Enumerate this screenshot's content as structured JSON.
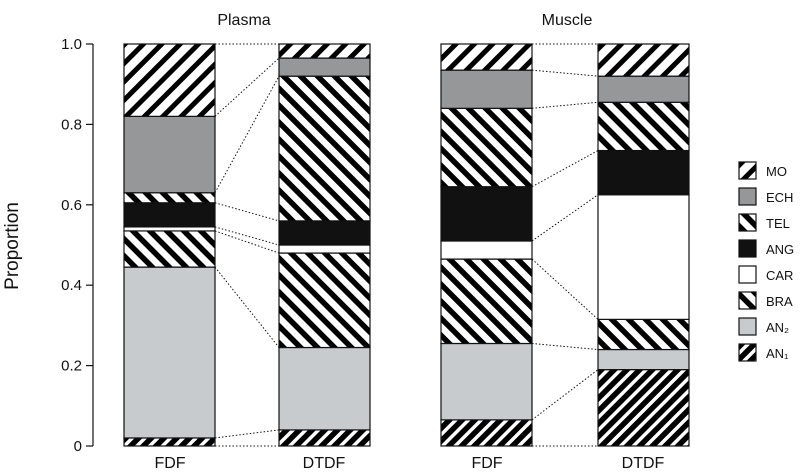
{
  "chart_data": {
    "type": "bar",
    "stacked": true,
    "ylabel": "Proportion",
    "ylim": [
      0,
      1
    ],
    "yticks": [
      {
        "value": 0,
        "label": "0"
      },
      {
        "value": 0.2,
        "label": "0.2"
      },
      {
        "value": 0.4,
        "label": "0.4"
      },
      {
        "value": 0.6,
        "label": "0.6"
      },
      {
        "value": 0.8,
        "label": "0.8"
      },
      {
        "value": 1.0,
        "label": "1.0"
      }
    ],
    "panels": [
      {
        "title": "Plasma",
        "categories": [
          "FDF",
          "DTDF"
        ]
      },
      {
        "title": "Muscle",
        "categories": [
          "FDF",
          "DTDF"
        ]
      }
    ],
    "legend_position": "right",
    "series": [
      {
        "name": "AN₁",
        "pattern": "stripe-dense",
        "values": [
          0.02,
          0.04,
          0.065,
          0.19
        ]
      },
      {
        "name": "AN₂",
        "pattern": "light-gray",
        "values": [
          0.425,
          0.205,
          0.19,
          0.05
        ]
      },
      {
        "name": "BRA",
        "pattern": "stripe-back",
        "values": [
          0.09,
          0.235,
          0.21,
          0.075
        ]
      },
      {
        "name": "CAR",
        "pattern": "white",
        "values": [
          0.01,
          0.02,
          0.045,
          0.31
        ]
      },
      {
        "name": "ANG",
        "pattern": "black",
        "values": [
          0.06,
          0.06,
          0.135,
          0.11
        ]
      },
      {
        "name": "TEL",
        "pattern": "stripe-back",
        "values": [
          0.025,
          0.36,
          0.195,
          0.12
        ]
      },
      {
        "name": "ECH",
        "pattern": "mid-gray",
        "values": [
          0.19,
          0.045,
          0.095,
          0.065
        ]
      },
      {
        "name": "MO",
        "pattern": "stripe-sparse",
        "values": [
          0.18,
          0.035,
          0.065,
          0.08
        ]
      }
    ],
    "legend_order": [
      "MO",
      "ECH",
      "TEL",
      "ANG",
      "CAR",
      "BRA",
      "AN₂",
      "AN₁"
    ]
  }
}
